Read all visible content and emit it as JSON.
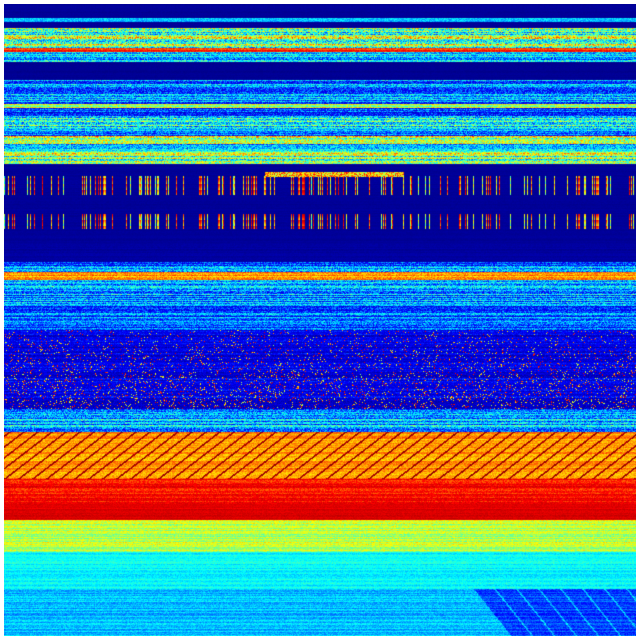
{
  "image": {
    "kind": "spectrogram",
    "colormap": "jet",
    "colormap_stops": [
      "#00007f",
      "#0000ff",
      "#00ffff",
      "#ffff00",
      "#ff0000",
      "#7f0000"
    ],
    "background_color": "#ffffff"
  }
}
